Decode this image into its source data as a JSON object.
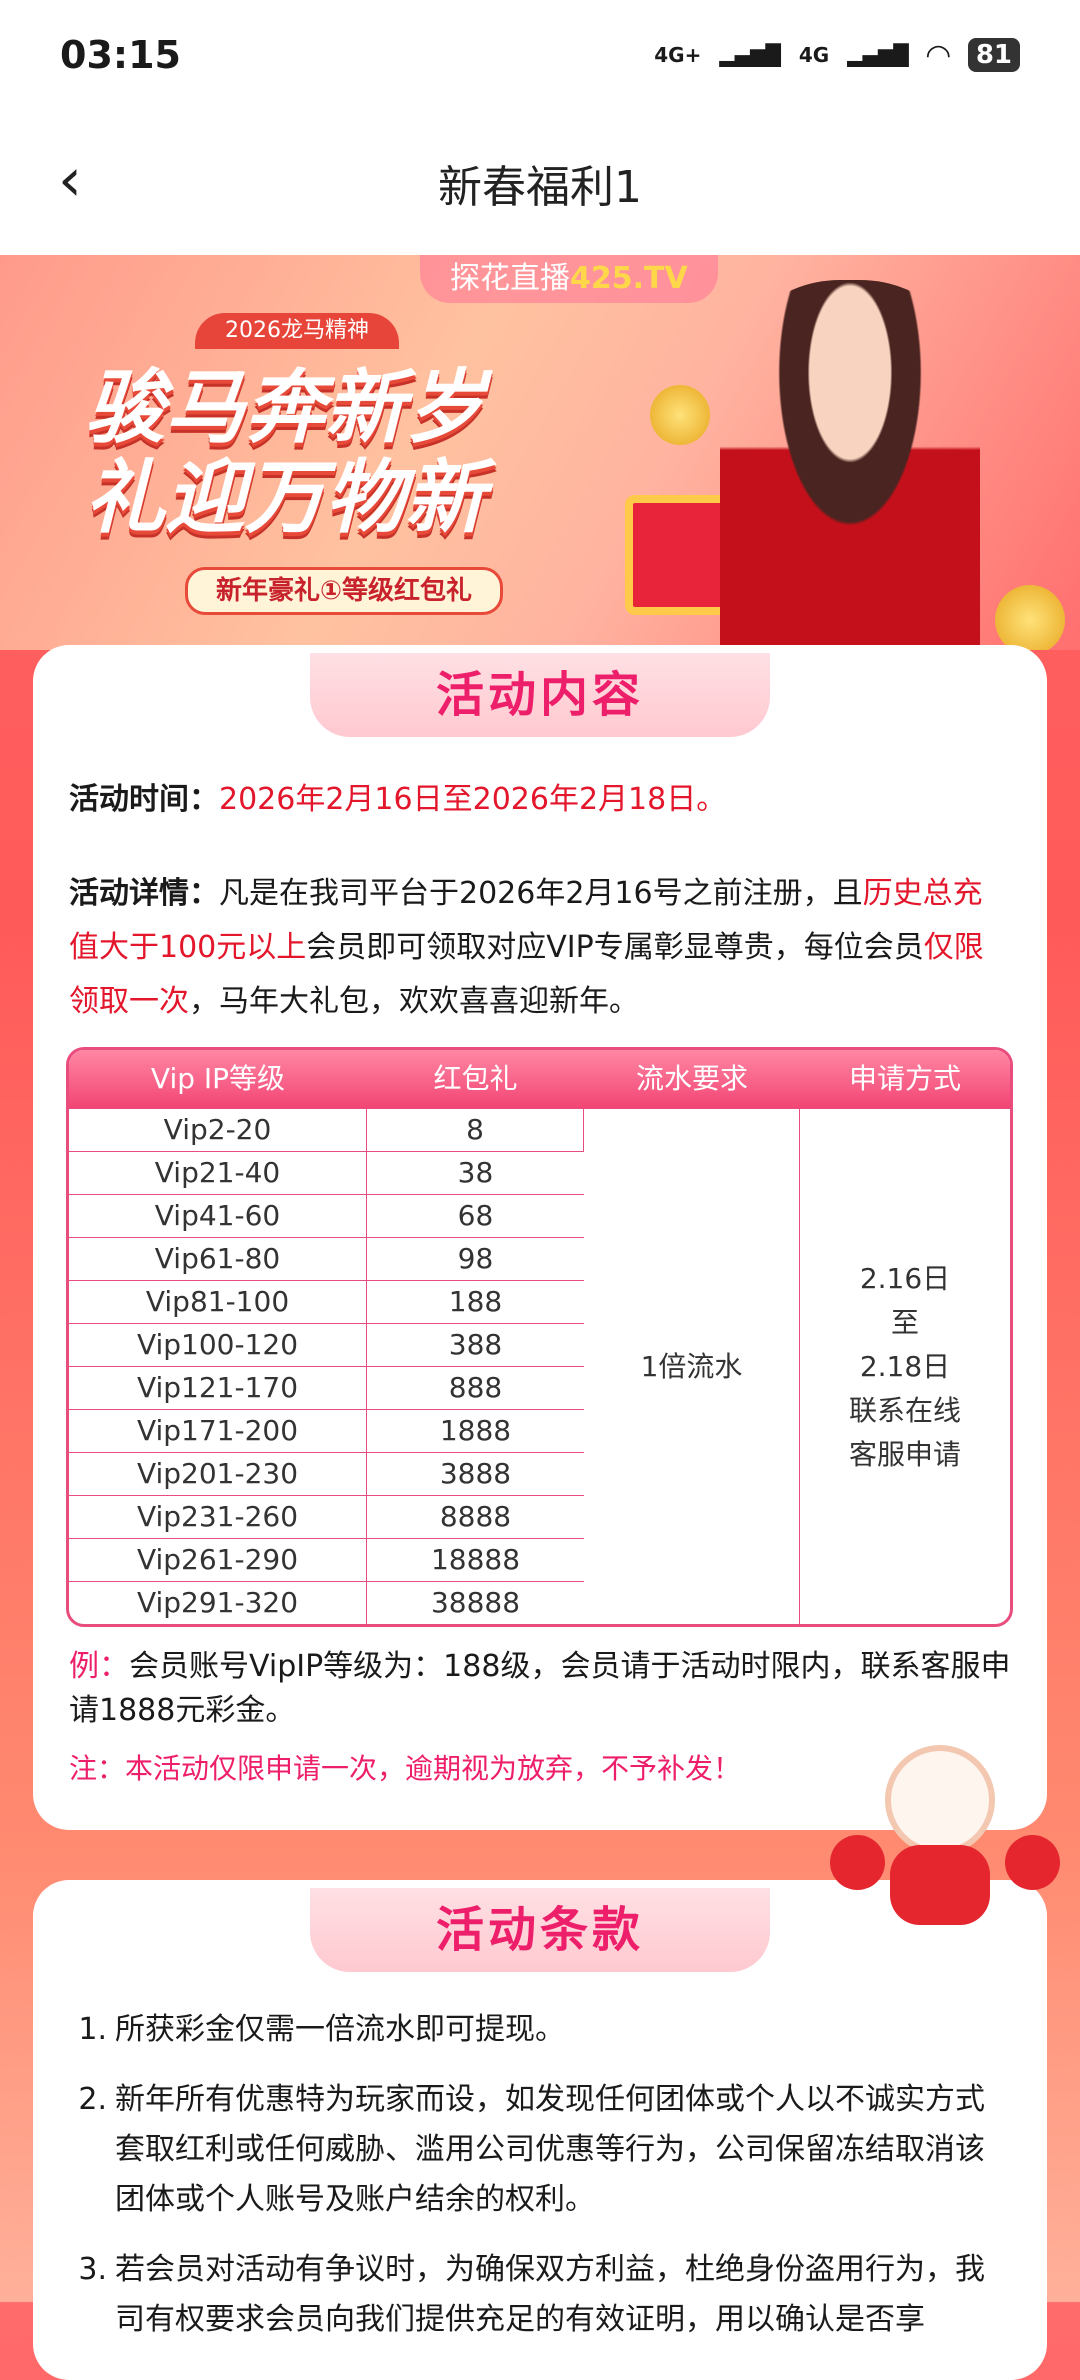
{
  "status_bar": {
    "time": "03:15",
    "signal1": "4G+",
    "signal2": "4G",
    "battery": "81"
  },
  "nav": {
    "title": "新春福利1"
  },
  "banner": {
    "brand_prefix": "探花直播",
    "brand_suffix": "425.TV",
    "subtitle": "2026龙马精神",
    "headline_1": "骏马奔新岁",
    "headline_2": "礼迎万物新",
    "ribbon": "新年豪礼①等级红包礼"
  },
  "content": {
    "title": "活动内容",
    "time_label": "活动时间：",
    "time_value": "2026年2月16日至2026年2月18日。",
    "detail_label": "活动详情：",
    "detail_1": "凡是在我司平台于2026年2月16号之前注册，且",
    "detail_red_1": "历史总充值大于100元以上",
    "detail_2": "会员即可领取对应VIP专属彰显尊贵，每位会员",
    "detail_red_2": "仅限领取一次",
    "detail_3": "，马年大礼包，欢欢喜喜迎新年。",
    "table": {
      "headers": [
        "Vip IP等级",
        "红包礼",
        "流水要求",
        "申请方式"
      ],
      "rows": [
        [
          "Vip2-20",
          "8"
        ],
        [
          "Vip21-40",
          "38"
        ],
        [
          "Vip41-60",
          "68"
        ],
        [
          "Vip61-80",
          "98"
        ],
        [
          "Vip81-100",
          "188"
        ],
        [
          "Vip100-120",
          "388"
        ],
        [
          "Vip121-170",
          "888"
        ],
        [
          "Vip171-200",
          "1888"
        ],
        [
          "Vip201-230",
          "3888"
        ],
        [
          "Vip231-260",
          "8888"
        ],
        [
          "Vip261-290",
          "18888"
        ],
        [
          "Vip291-320",
          "38888"
        ]
      ],
      "turnover": "1倍流水",
      "apply": [
        "2.16日",
        "至",
        "2.18日",
        "联系在线",
        "客服申请"
      ]
    },
    "example_label": "例：",
    "example_text": "会员账号VipIP等级为：188级，会员请于活动时限内，联系客服申请1888元彩金。",
    "note": "注：本活动仅限申请一次，逾期视为放弃，不予补发！"
  },
  "terms": {
    "title": "活动条款",
    "items": [
      {
        "n": "1.",
        "text": "所获彩金仅需一倍流水即可提现。"
      },
      {
        "n": "2.",
        "text": "新年所有优惠特为玩家而设，如发现任何团体或个人以不诚实方式套取红利或任何威胁、滥用公司优惠等行为，公司保留冻结取消该团体或个人账号及账户结余的权利。"
      },
      {
        "n": "3.",
        "text": "若会员对活动有争议时，为确保双方利益，杜绝身份盗用行为，我司有权要求会员向我们提供充足的有效证明，用以确认是否享"
      }
    ]
  },
  "colors": {
    "accent_pink": "#ee1f6a",
    "red": "#e3162b",
    "table_border": "#e94d7d"
  }
}
